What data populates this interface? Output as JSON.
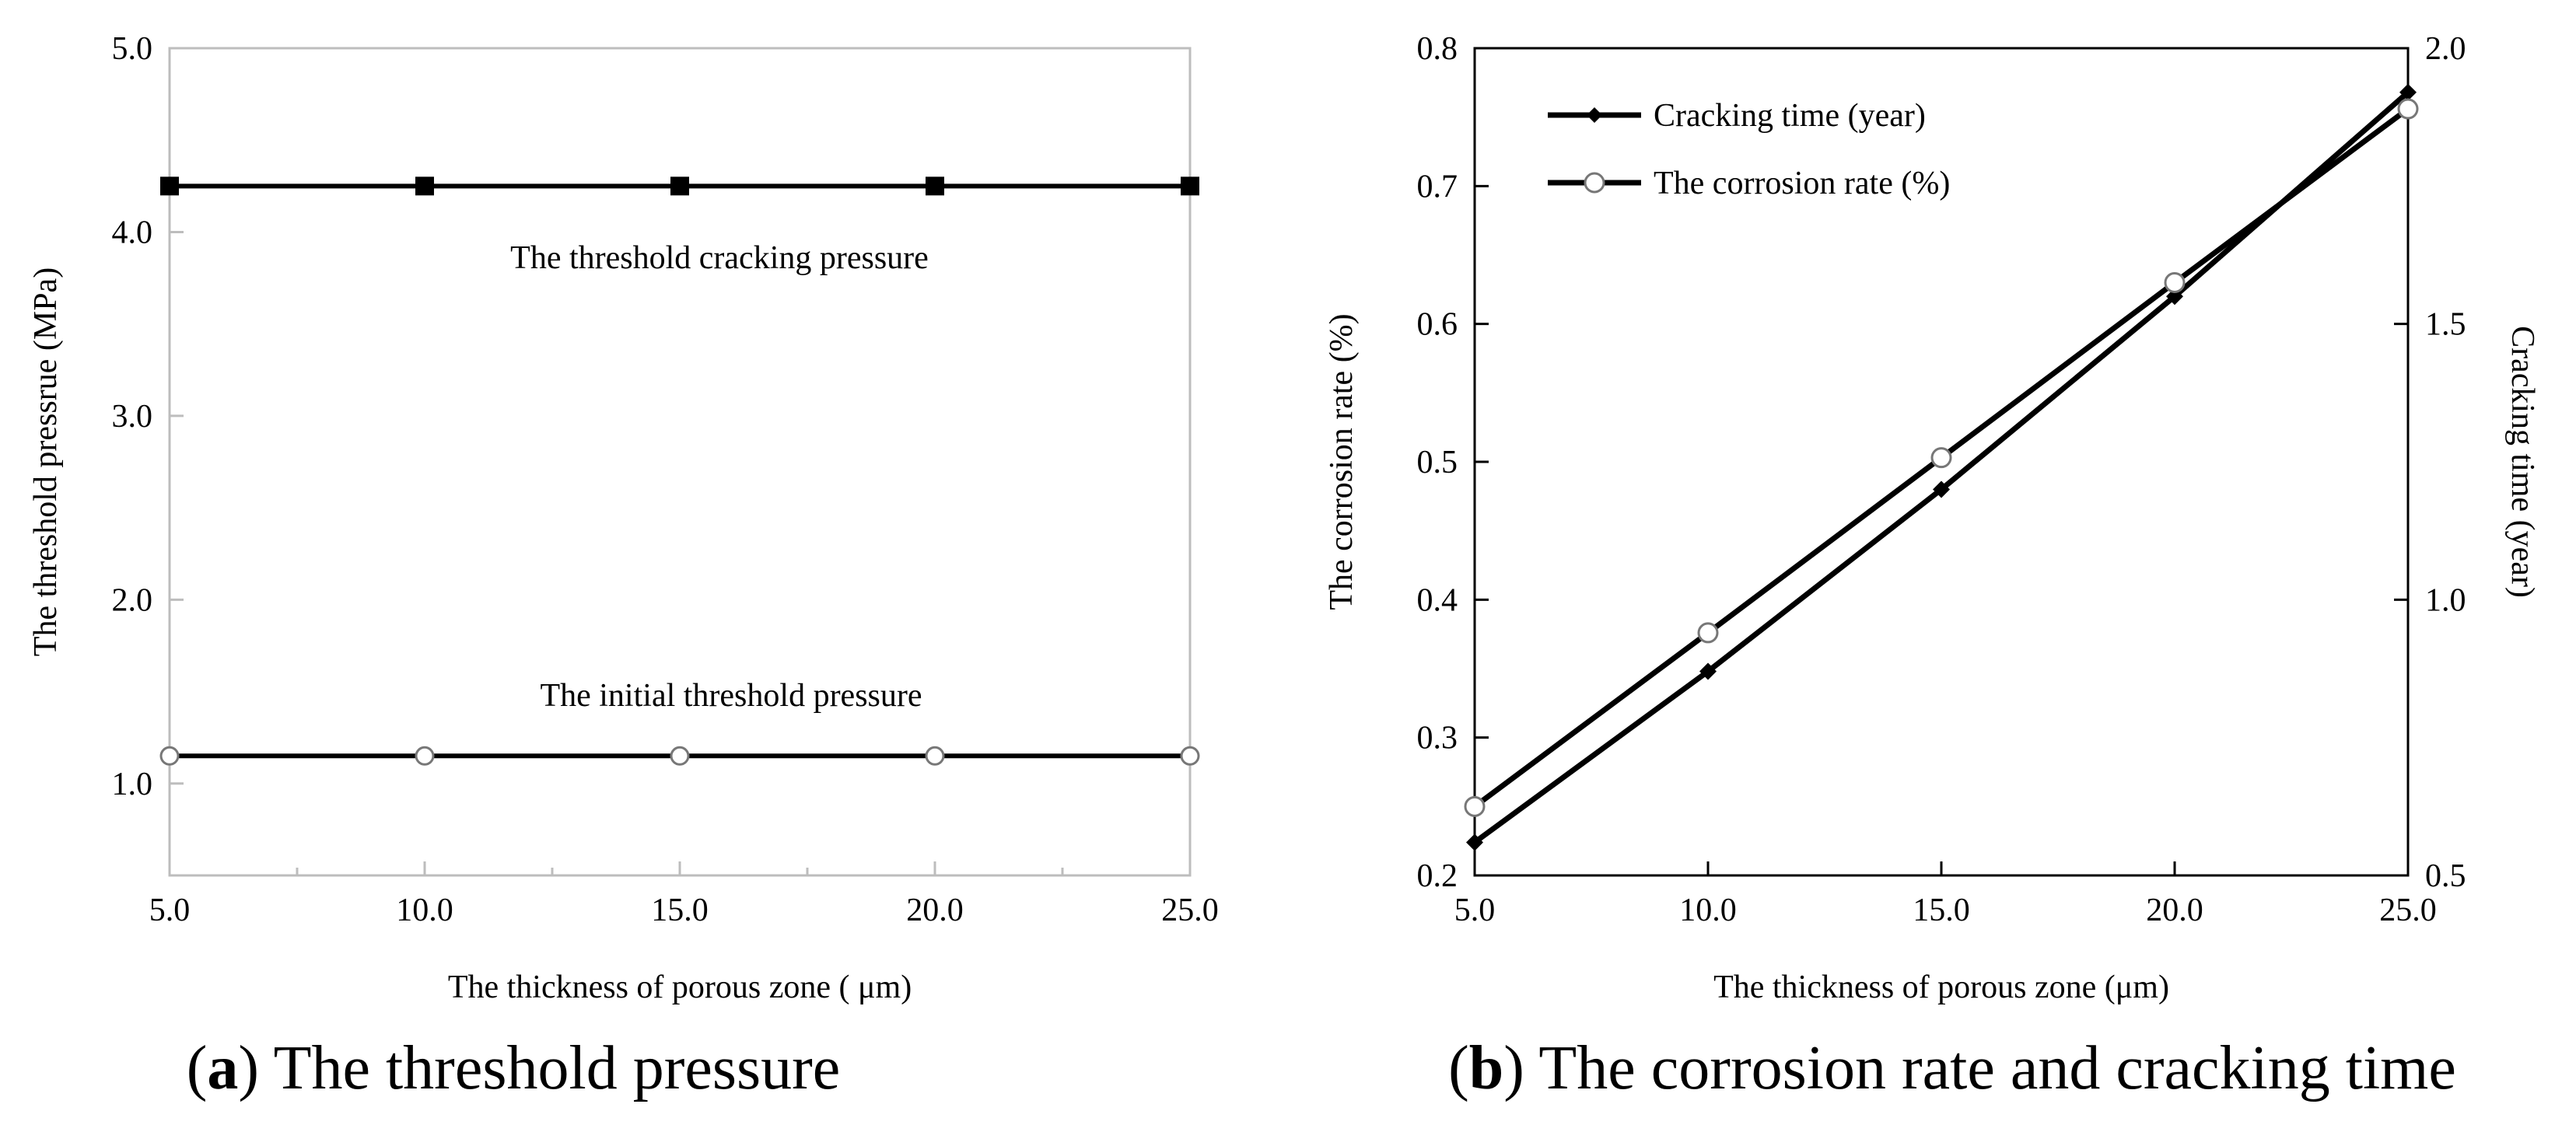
{
  "chart_data": [
    {
      "type": "line",
      "caption_label": "a",
      "caption_text": "The threshold pressure",
      "xlabel": "The thickness of porous zone ( μm)",
      "ylabel": "The threshold pressrue (MPa)",
      "xlim": [
        5,
        25
      ],
      "ylim": [
        0.5,
        5.0
      ],
      "x_ticks": [
        "5.0",
        "10.0",
        "15.0",
        "20.0",
        "25.0"
      ],
      "y_ticks": [
        "1.0",
        "2.0",
        "3.0",
        "4.0",
        "5.0"
      ],
      "x": [
        5,
        10,
        15,
        20,
        25
      ],
      "series": [
        {
          "name": "The threshold cracking pressure",
          "marker": "square",
          "values": [
            4.25,
            4.25,
            4.25,
            4.25,
            4.25
          ]
        },
        {
          "name": "The initial threshold pressure",
          "marker": "circle",
          "values": [
            1.15,
            1.15,
            1.15,
            1.15,
            1.15
          ]
        }
      ],
      "annotations": [
        "The threshold cracking pressure",
        "The initial threshold pressure"
      ]
    },
    {
      "type": "line",
      "caption_label": "b",
      "caption_text": "The corrosion rate and cracking time",
      "xlabel": "The thickness of porous zone (μm)",
      "ylabel_left": "The corrosion rate (%)",
      "ylabel_right": "Cracking time (year)",
      "xlim": [
        5,
        25
      ],
      "ylim_left": [
        0.2,
        0.8
      ],
      "ylim_right": [
        0.5,
        2.0
      ],
      "x_ticks": [
        "5.0",
        "10.0",
        "15.0",
        "20.0",
        "25.0"
      ],
      "y_ticks_left": [
        "0.2",
        "0.3",
        "0.4",
        "0.5",
        "0.6",
        "0.7",
        "0.8"
      ],
      "y_ticks_right": [
        "0.5",
        "1.0",
        "1.5",
        "2.0"
      ],
      "x": [
        5,
        10,
        15,
        20,
        25
      ],
      "series": [
        {
          "name": "Cracking time (year)",
          "marker": "diamond",
          "axis": "right",
          "values": [
            0.56,
            0.87,
            1.2,
            1.55,
            1.92
          ]
        },
        {
          "name": "The corrosion rate (%)",
          "marker": "circle",
          "axis": "left",
          "values": [
            0.25,
            0.376,
            0.503,
            0.63,
            0.756
          ]
        }
      ],
      "legend": "top-left"
    }
  ]
}
